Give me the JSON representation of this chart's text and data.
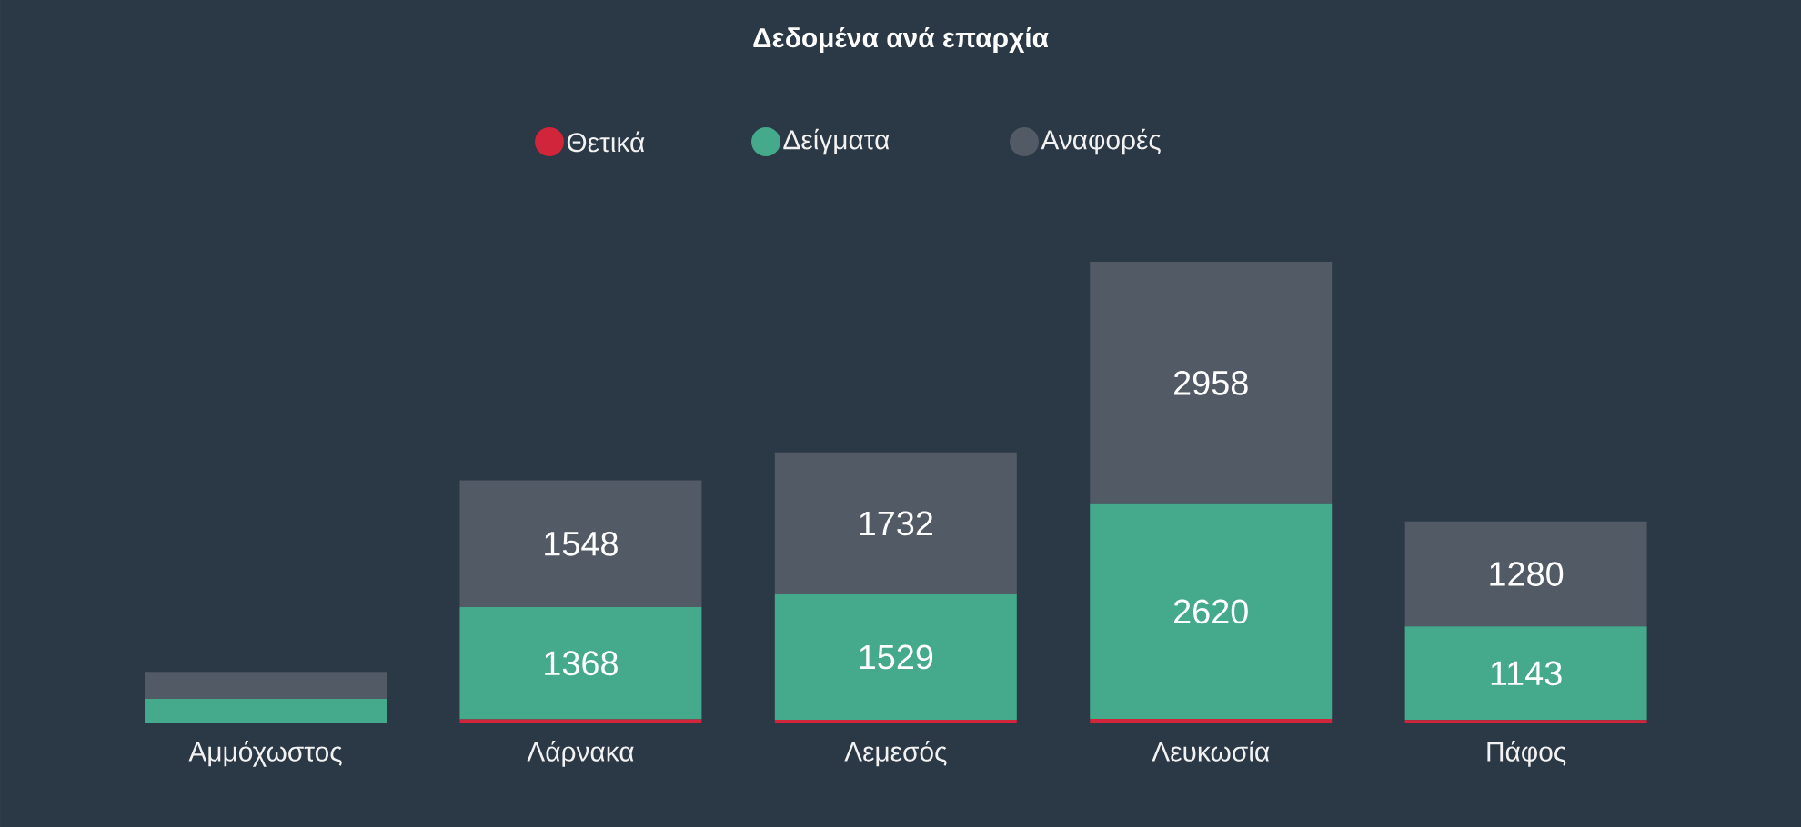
{
  "chart_data": {
    "type": "bar",
    "title": "Δεδομένα ανά επαρχία",
    "stacked": true,
    "legend": "top",
    "categories": [
      "Αμμόχωστος",
      "Λάρνακα",
      "Λεμεσός",
      "Λευκωσία",
      "Πάφος"
    ],
    "series": [
      {
        "name": "Θετικά",
        "color": "#d0253a",
        "values": [
          null,
          50,
          45,
          55,
          40
        ],
        "value_labels": [
          null,
          null,
          null,
          null,
          null
        ]
      },
      {
        "name": "Δείγματα",
        "color": "#45a98b",
        "values": [
          300,
          1368,
          1529,
          2620,
          1143
        ],
        "value_labels": [
          null,
          "1368",
          "1529",
          "2620",
          "1143"
        ]
      },
      {
        "name": "Αναφορές",
        "color": "#525a66",
        "values": [
          330,
          1548,
          1732,
          2958,
          1280
        ],
        "value_labels": [
          null,
          "1548",
          "1732",
          "2958",
          "1280"
        ]
      }
    ]
  }
}
